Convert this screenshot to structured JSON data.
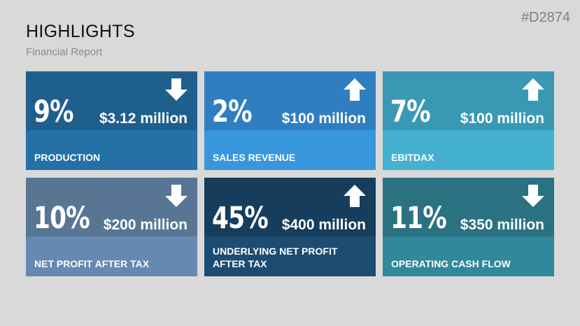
{
  "slide_id": "#D2874",
  "title": "HIGHLIGHTS",
  "subtitle": "Financial Report",
  "tiles": [
    {
      "percent": "9%",
      "amount": "$3.12 million",
      "label": "PRODUCTION",
      "direction": "down",
      "icon": "arrow-down-icon",
      "top_color": "#1f5f8e",
      "bottom_color": "#2471a8"
    },
    {
      "percent": "2%",
      "amount": "$100 million",
      "label": "SALES REVENUE",
      "direction": "up",
      "icon": "arrow-up-icon",
      "top_color": "#2f7fc0",
      "bottom_color": "#3896dc"
    },
    {
      "percent": "7%",
      "amount": "$100 million",
      "label": "EBITDAX",
      "direction": "up",
      "icon": "arrow-up-icon",
      "top_color": "#3999b4",
      "bottom_color": "#45b1d0"
    },
    {
      "percent": "10%",
      "amount": "$200 million",
      "label": "NET PROFIT AFTER TAX",
      "direction": "down",
      "icon": "arrow-down-icon",
      "top_color": "#587694",
      "bottom_color": "#6788b0"
    },
    {
      "percent": "45%",
      "amount": "$400 million",
      "label": "UNDERLYING NET PROFIT AFTER TAX",
      "direction": "up",
      "icon": "arrow-up-icon",
      "top_color": "#163d5c",
      "bottom_color": "#1c4c72"
    },
    {
      "percent": "11%",
      "amount": "$350 million",
      "label": "OPERATING CASH FLOW",
      "direction": "down",
      "icon": "arrow-down-icon",
      "top_color": "#2a7282",
      "bottom_color": "#31889a"
    }
  ]
}
